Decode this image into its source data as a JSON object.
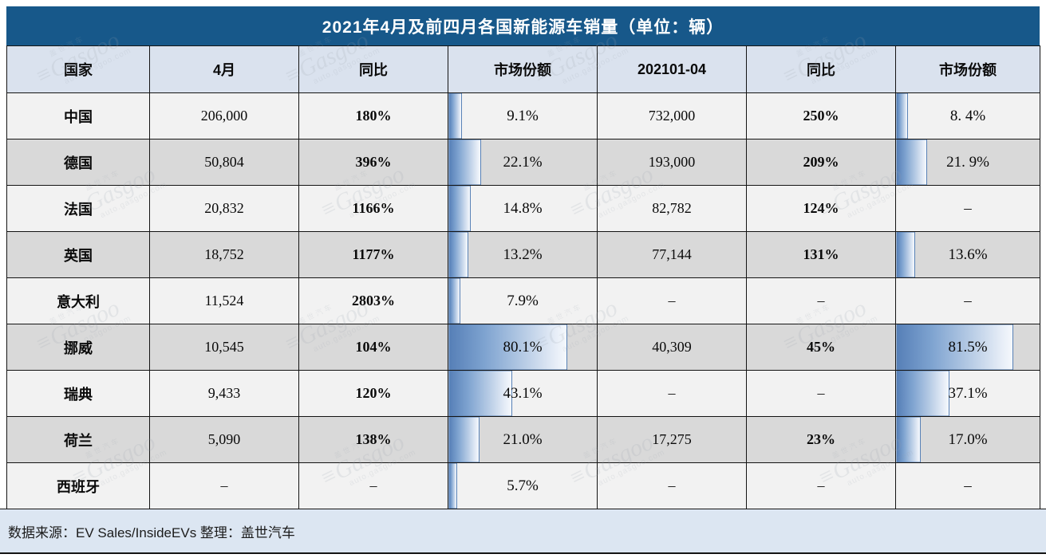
{
  "title": "2021年4月及前四月各国新能源车销量（单位：辆）",
  "footer": {
    "source": "数据来源：EV Sales/InsideEVs 整理：盖世汽车"
  },
  "watermark": {
    "brand_cn": "盖世汽车",
    "logo": "Gasgoo",
    "url": "auto.gasgoo.com"
  },
  "colors": {
    "title_bar": "#17588a",
    "header_bg": "#dae2ee",
    "row_light": "#f2f2f2",
    "row_dark": "#d9d9d9",
    "footer_bg": "#dce6f2",
    "yoy_red": "#cc1212",
    "bar_blue": "#567fb7",
    "border": "#141414"
  },
  "chart_data": {
    "type": "table",
    "title": "2021年4月及前四月各国新能源车销量（单位：辆）",
    "columns": [
      "国家",
      "4月",
      "同比",
      "市场份额",
      "202101-04",
      "同比",
      "市场份额"
    ],
    "bar_scale_note": "market-share data bars are sized as value percent of full cell width (max 100%)",
    "rows": [
      {
        "country": "中国",
        "april": "206,000",
        "april_yoy": "180%",
        "april_share": "9.1%",
        "april_share_pct": 9.1,
        "ytd": "732,000",
        "ytd_yoy": "250%",
        "ytd_share": "8. 4%",
        "ytd_share_pct": 8.4
      },
      {
        "country": "德国",
        "april": "50,804",
        "april_yoy": "396%",
        "april_share": "22.1%",
        "april_share_pct": 22.1,
        "ytd": "193,000",
        "ytd_yoy": "209%",
        "ytd_share": "21. 9%",
        "ytd_share_pct": 21.9
      },
      {
        "country": "法国",
        "april": "20,832",
        "april_yoy": "1166%",
        "april_share": "14.8%",
        "april_share_pct": 14.8,
        "ytd": "82,782",
        "ytd_yoy": "124%",
        "ytd_share": "–",
        "ytd_share_pct": null
      },
      {
        "country": "英国",
        "april": "18,752",
        "april_yoy": "1177%",
        "april_share": "13.2%",
        "april_share_pct": 13.2,
        "ytd": "77,144",
        "ytd_yoy": "131%",
        "ytd_share": "13.6%",
        "ytd_share_pct": 13.6
      },
      {
        "country": "意大利",
        "april": "11,524",
        "april_yoy": "2803%",
        "april_share": "7.9%",
        "april_share_pct": 7.9,
        "ytd": "–",
        "ytd_yoy": "–",
        "ytd_share": "–",
        "ytd_share_pct": null
      },
      {
        "country": "挪威",
        "april": "10,545",
        "april_yoy": "104%",
        "april_share": "80.1%",
        "april_share_pct": 80.1,
        "ytd": "40,309",
        "ytd_yoy": "45%",
        "ytd_share": "81.5%",
        "ytd_share_pct": 81.5
      },
      {
        "country": "瑞典",
        "april": "9,433",
        "april_yoy": "120%",
        "april_share": "43.1%",
        "april_share_pct": 43.1,
        "ytd": "–",
        "ytd_yoy": "–",
        "ytd_share": "37.1%",
        "ytd_share_pct": 37.1
      },
      {
        "country": "荷兰",
        "april": "5,090",
        "april_yoy": "138%",
        "april_share": "21.0%",
        "april_share_pct": 21.0,
        "ytd": "17,275",
        "ytd_yoy": "23%",
        "ytd_share": "17.0%",
        "ytd_share_pct": 17.0
      },
      {
        "country": "西班牙",
        "april": "–",
        "april_yoy": "–",
        "april_share": "5.7%",
        "april_share_pct": 5.7,
        "ytd": "–",
        "ytd_yoy": "–",
        "ytd_share": "–",
        "ytd_share_pct": null
      }
    ]
  }
}
